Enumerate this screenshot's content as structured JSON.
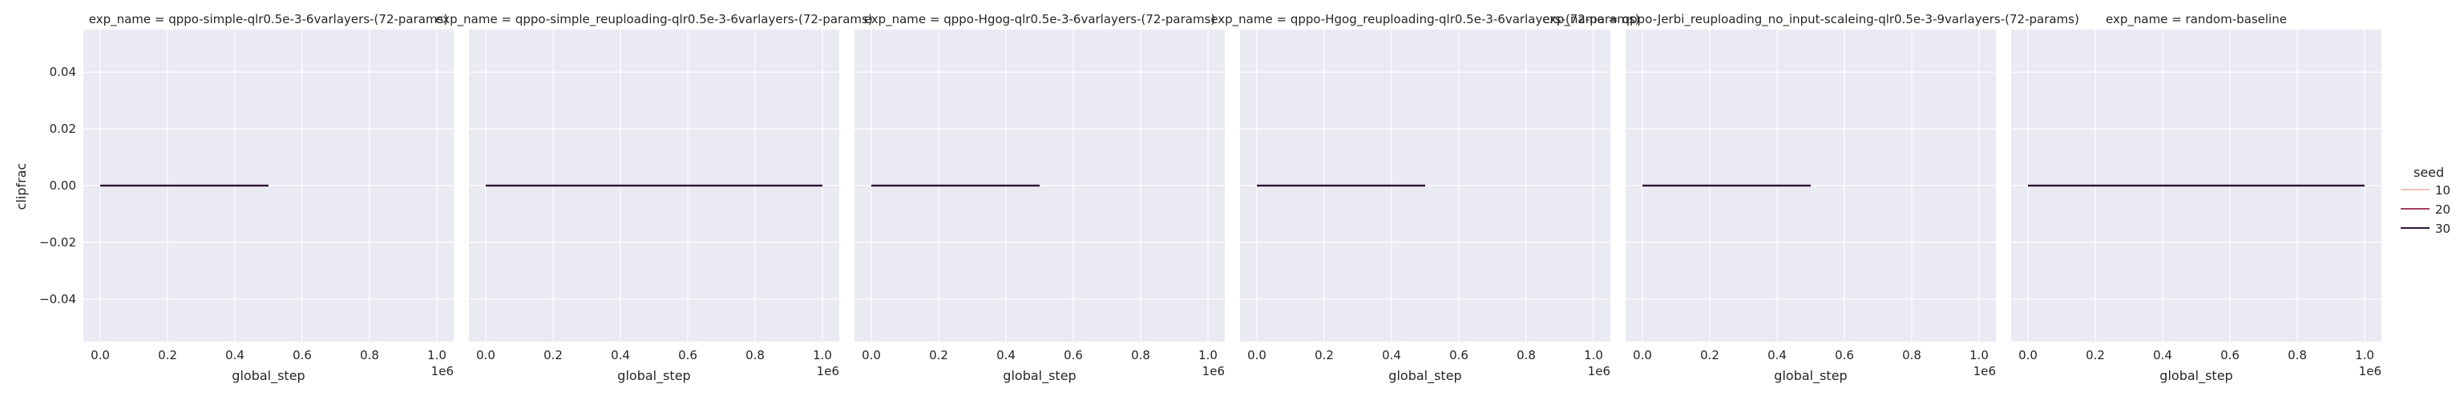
{
  "figure": {
    "ylabel": "clipfrac",
    "xlabel": "global_step",
    "x_offset_label": "1e6",
    "legend_title": "seed",
    "legend_entries": [
      "10",
      "20",
      "30"
    ]
  },
  "colors": {
    "background": "#eaeaf2",
    "grid": "#ffffff",
    "seed_10": "#e8c4b8",
    "seed_20": "#a0405a",
    "seed_30": "#2a1538"
  },
  "chart_data": [
    {
      "type": "line",
      "title": "exp_name = qppo-simple-qlr0.5e-3-6varlayers-(72-params)",
      "xlabel": "global_step",
      "ylabel": "clipfrac",
      "xlim": [
        -0.05,
        1.05
      ],
      "ylim": [
        -0.055,
        0.055
      ],
      "xticks": [
        "0.0",
        "0.2",
        "0.4",
        "0.6",
        "0.8",
        "1.0"
      ],
      "yticks": [
        "0.04",
        "0.02",
        "0.00",
        "−0.02",
        "−0.04"
      ],
      "grid": true,
      "series": [
        {
          "name": "10",
          "x": [
            0.0,
            0.5
          ],
          "y": [
            0.0,
            0.0
          ]
        },
        {
          "name": "20",
          "x": [
            0.0,
            0.5
          ],
          "y": [
            0.0,
            0.0
          ]
        },
        {
          "name": "30",
          "x": [
            0.0,
            0.5
          ],
          "y": [
            0.0,
            0.0
          ]
        }
      ]
    },
    {
      "type": "line",
      "title": "exp_name = qppo-simple_reuploading-qlr0.5e-3-6varlayers-(72-params)",
      "xlabel": "global_step",
      "ylabel": "clipfrac",
      "xlim": [
        -0.05,
        1.05
      ],
      "ylim": [
        -0.055,
        0.055
      ],
      "xticks": [
        "0.0",
        "0.2",
        "0.4",
        "0.6",
        "0.8",
        "1.0"
      ],
      "yticks": [
        "0.04",
        "0.02",
        "0.00",
        "−0.02",
        "−0.04"
      ],
      "grid": true,
      "series": [
        {
          "name": "10",
          "x": [
            0.0,
            1.0
          ],
          "y": [
            0.0,
            0.0
          ]
        },
        {
          "name": "20",
          "x": [
            0.0,
            1.0
          ],
          "y": [
            0.0,
            0.0
          ]
        },
        {
          "name": "30",
          "x": [
            0.0,
            1.0
          ],
          "y": [
            0.0,
            0.0
          ]
        }
      ]
    },
    {
      "type": "line",
      "title": "exp_name = qppo-Hgog-qlr0.5e-3-6varlayers-(72-params)",
      "xlabel": "global_step",
      "ylabel": "clipfrac",
      "xlim": [
        -0.05,
        1.05
      ],
      "ylim": [
        -0.055,
        0.055
      ],
      "xticks": [
        "0.0",
        "0.2",
        "0.4",
        "0.6",
        "0.8",
        "1.0"
      ],
      "yticks": [
        "0.04",
        "0.02",
        "0.00",
        "−0.02",
        "−0.04"
      ],
      "grid": true,
      "series": [
        {
          "name": "10",
          "x": [
            0.0,
            0.5
          ],
          "y": [
            0.0,
            0.0
          ]
        },
        {
          "name": "20",
          "x": [
            0.0,
            0.5
          ],
          "y": [
            0.0,
            0.0
          ]
        },
        {
          "name": "30",
          "x": [
            0.0,
            0.5
          ],
          "y": [
            0.0,
            0.0
          ]
        }
      ]
    },
    {
      "type": "line",
      "title": "exp_name = qppo-Hgog_reuploading-qlr0.5e-3-6varlayers-(72-params)",
      "xlabel": "global_step",
      "ylabel": "clipfrac",
      "xlim": [
        -0.05,
        1.05
      ],
      "ylim": [
        -0.055,
        0.055
      ],
      "xticks": [
        "0.0",
        "0.2",
        "0.4",
        "0.6",
        "0.8",
        "1.0"
      ],
      "yticks": [
        "0.04",
        "0.02",
        "0.00",
        "−0.02",
        "−0.04"
      ],
      "grid": true,
      "series": [
        {
          "name": "10",
          "x": [
            0.0,
            0.5
          ],
          "y": [
            0.0,
            0.0
          ]
        },
        {
          "name": "20",
          "x": [
            0.0,
            0.5
          ],
          "y": [
            0.0,
            0.0
          ]
        },
        {
          "name": "30",
          "x": [
            0.0,
            0.5
          ],
          "y": [
            0.0,
            0.0
          ]
        }
      ]
    },
    {
      "type": "line",
      "title": "exp_name = qppo-Jerbi_reuploading_no_input-scaleing-qlr0.5e-3-9varlayers-(72-params)",
      "xlabel": "global_step",
      "ylabel": "clipfrac",
      "xlim": [
        -0.05,
        1.05
      ],
      "ylim": [
        -0.055,
        0.055
      ],
      "xticks": [
        "0.0",
        "0.2",
        "0.4",
        "0.6",
        "0.8",
        "1.0"
      ],
      "yticks": [
        "0.04",
        "0.02",
        "0.00",
        "−0.02",
        "−0.04"
      ],
      "grid": true,
      "series": [
        {
          "name": "10",
          "x": [
            0.0,
            0.5
          ],
          "y": [
            0.0,
            0.0
          ]
        },
        {
          "name": "20",
          "x": [
            0.0,
            0.5
          ],
          "y": [
            0.0,
            0.0
          ]
        },
        {
          "name": "30",
          "x": [
            0.0,
            0.5
          ],
          "y": [
            0.0,
            0.0
          ]
        }
      ]
    },
    {
      "type": "line",
      "title": "exp_name = random-baseline",
      "xlabel": "global_step",
      "ylabel": "clipfrac",
      "xlim": [
        -0.05,
        1.05
      ],
      "ylim": [
        -0.055,
        0.055
      ],
      "xticks": [
        "0.0",
        "0.2",
        "0.4",
        "0.6",
        "0.8",
        "1.0"
      ],
      "yticks": [
        "0.04",
        "0.02",
        "0.00",
        "−0.02",
        "−0.04"
      ],
      "grid": true,
      "series": [
        {
          "name": "10",
          "x": [
            0.0,
            1.0
          ],
          "y": [
            0.0,
            0.0
          ]
        },
        {
          "name": "20",
          "x": [
            0.0,
            1.0
          ],
          "y": [
            0.0,
            0.0
          ]
        },
        {
          "name": "30",
          "x": [
            0.0,
            1.0
          ],
          "y": [
            0.0,
            0.0
          ]
        }
      ]
    }
  ]
}
